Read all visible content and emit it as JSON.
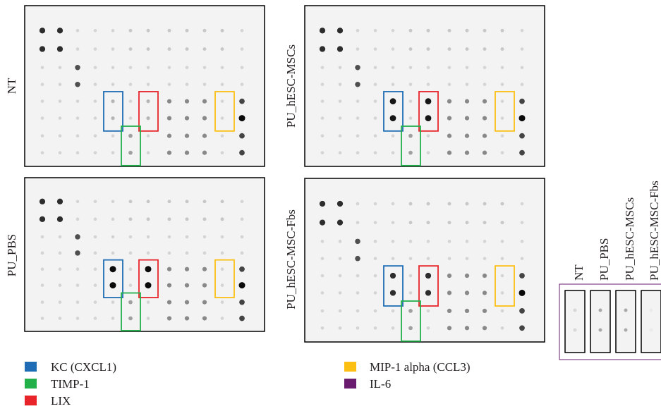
{
  "panels": [
    {
      "label": "NT"
    },
    {
      "label": "PU_hESC-MSCs"
    },
    {
      "label": "PU_PBS"
    },
    {
      "label": "PU_hESC-MSC-Fbs"
    }
  ],
  "inset": {
    "labels": [
      "NT",
      "PU_PBS",
      "PU_hESC-MSCs",
      "PU_hESC-MSC-Fbs"
    ]
  },
  "legend": [
    {
      "label": "KC (CXCL1)",
      "color": "#1f6db5"
    },
    {
      "label": "TIMP-1",
      "color": "#22b04b"
    },
    {
      "label": "LIX",
      "color": "#e8232a"
    },
    {
      "label": "MIP-1 alpha (CCL3)",
      "color": "#fcbf12"
    },
    {
      "label": "IL-6",
      "color": "#6a1b6e"
    }
  ]
}
